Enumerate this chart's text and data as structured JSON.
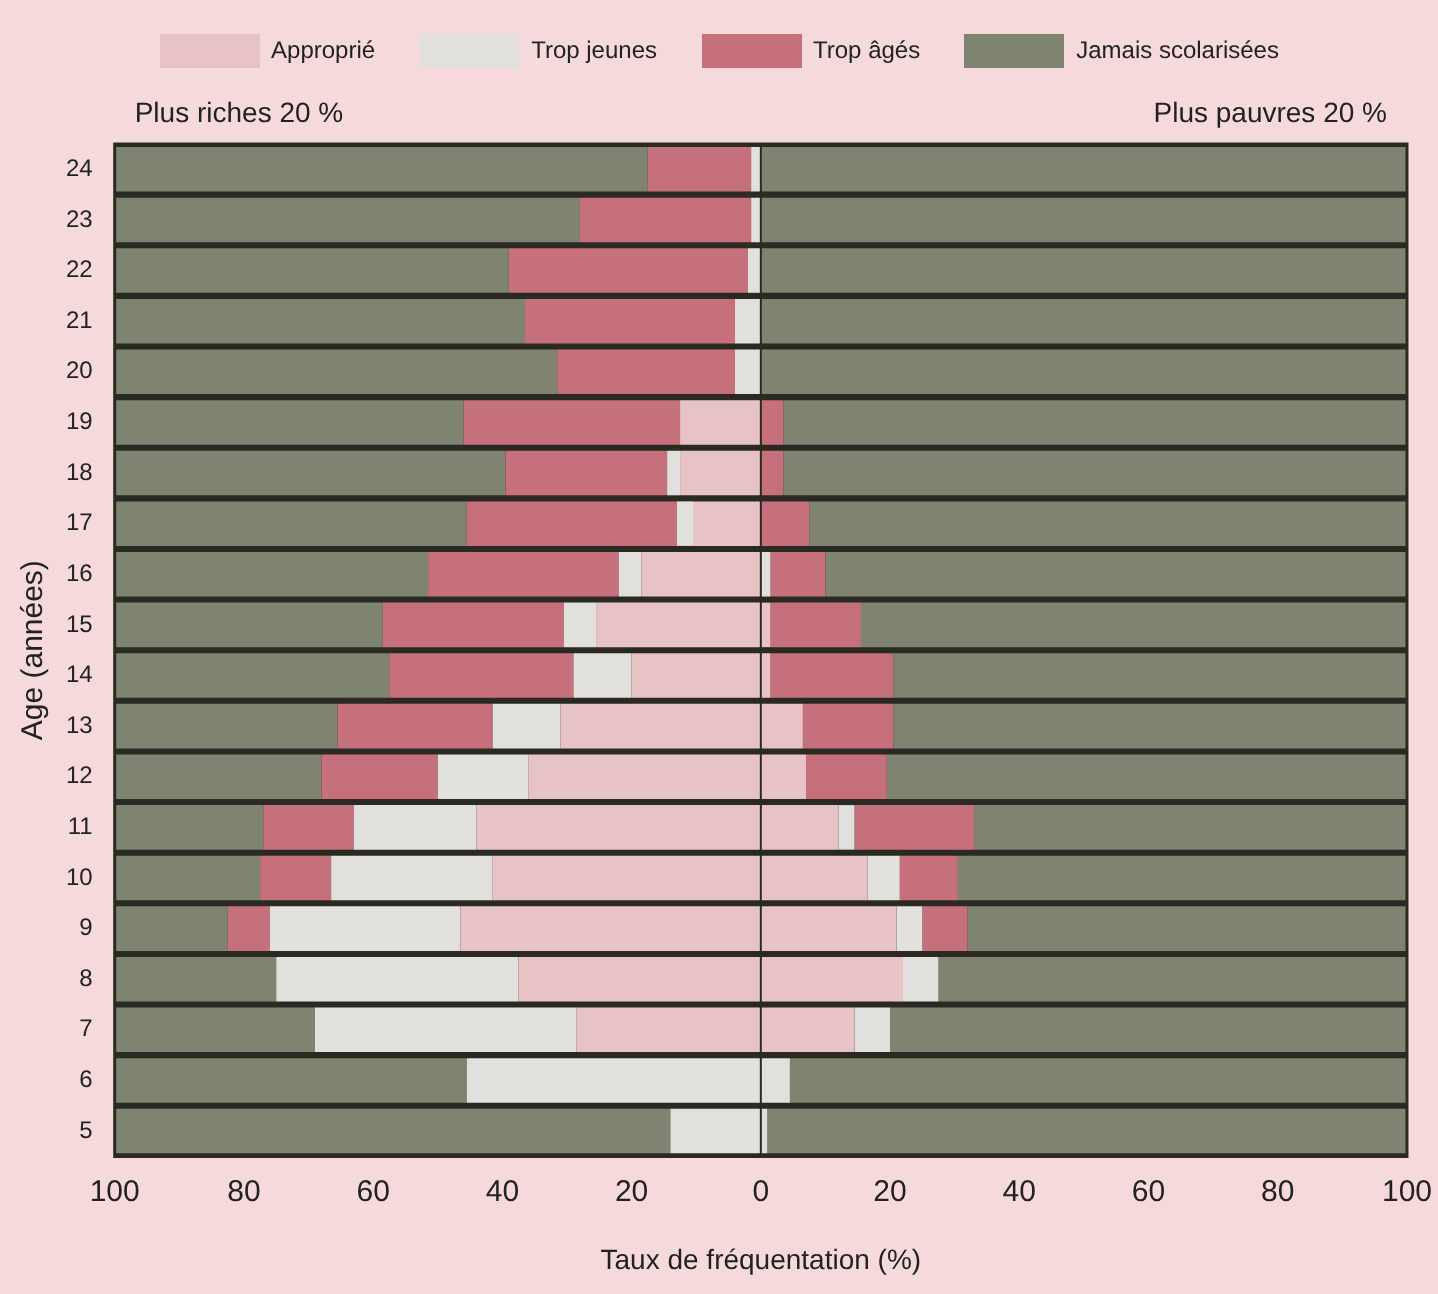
{
  "chart_data": {
    "type": "bar",
    "orientation": "horizontal",
    "stacked": true,
    "xlabel": "Taux de fréquentation (%)",
    "ylabel": "Age (années)",
    "annotations": [
      "Plus riches 20 %",
      "Plus pauvres 20 %"
    ],
    "categories": [
      "24",
      "23",
      "22",
      "21",
      "20",
      "19",
      "18",
      "17",
      "16",
      "15",
      "14",
      "13",
      "12",
      "11",
      "10",
      "9",
      "8",
      "7",
      "6",
      "5"
    ],
    "xlim": [
      -100,
      100
    ],
    "xticks": [
      {
        "value": -100,
        "label": "100"
      },
      {
        "value": -80,
        "label": "80"
      },
      {
        "value": -60,
        "label": "60"
      },
      {
        "value": -40,
        "label": "40"
      },
      {
        "value": -20,
        "label": "20"
      },
      0,
      20,
      40,
      60,
      80,
      100
    ],
    "legend": "top",
    "series": [
      {
        "name": "Approprié",
        "color": "#e8c3c6",
        "values": [
          null,
          null,
          null,
          null,
          null,
          -12.5,
          -12.5,
          -10.5,
          -18.5,
          -25.5,
          -20,
          -31,
          -36,
          -44,
          -41.5,
          -46.5,
          -37.5,
          -28.5,
          null,
          null
        ]
      },
      {
        "name": "Trop jeunes",
        "color": "#e2e0dc",
        "values": [
          -1.5,
          -1.5,
          -2,
          -4,
          -4,
          null,
          -2,
          -2.5,
          -3.5,
          -5,
          -9,
          -10.5,
          -14,
          -19,
          -25,
          -29.5,
          -37.5,
          -40.5,
          -45.5,
          -14
        ]
      },
      {
        "name": "Trop âgés",
        "color": "#c5707b",
        "values": [
          -16,
          -26.5,
          -37,
          -32.5,
          -27.5,
          -33.5,
          -25,
          -32.5,
          -29.5,
          -28,
          -28.5,
          -24,
          -18,
          -14,
          -11,
          -6.5,
          null,
          null,
          null,
          null
        ]
      },
      {
        "color": "#7e846f",
        "values": [
          -82.5,
          -72,
          -61,
          -63.5,
          -68.5,
          -54,
          -60.5,
          -54.5,
          -48.5,
          -41.5,
          -42.5,
          -34.5,
          -32,
          -23,
          -22.5,
          -17.5,
          -25,
          -31,
          -54.5,
          -86
        ]
      },
      {
        "color": "#e8c3c6",
        "values": [
          null,
          null,
          null,
          null,
          null,
          null,
          null,
          null,
          null,
          1.5,
          1.5,
          6.5,
          7,
          12,
          16.5,
          21,
          22,
          14.5,
          null,
          null
        ]
      },
      {
        "color": "#e2e0dc",
        "values": [
          null,
          null,
          null,
          null,
          null,
          null,
          null,
          null,
          1.5,
          null,
          null,
          null,
          null,
          2.5,
          5,
          4,
          5.5,
          5.5,
          4.5,
          1
        ]
      },
      {
        "color": "#c5707b",
        "values": [
          null,
          null,
          null,
          null,
          null,
          3.5,
          3.5,
          7.5,
          8.5,
          14,
          19,
          14,
          12.5,
          18.5,
          9,
          7,
          null,
          null,
          null,
          null
        ]
      },
      {
        "name": "Jamais scolarisées",
        "color": "#7e846f",
        "values": [
          100,
          100,
          100,
          100,
          100,
          96.5,
          96.5,
          92.5,
          90,
          84.5,
          79.5,
          79.5,
          80.5,
          67,
          69.5,
          68,
          72.5,
          80,
          95.5,
          99
        ]
      }
    ]
  }
}
